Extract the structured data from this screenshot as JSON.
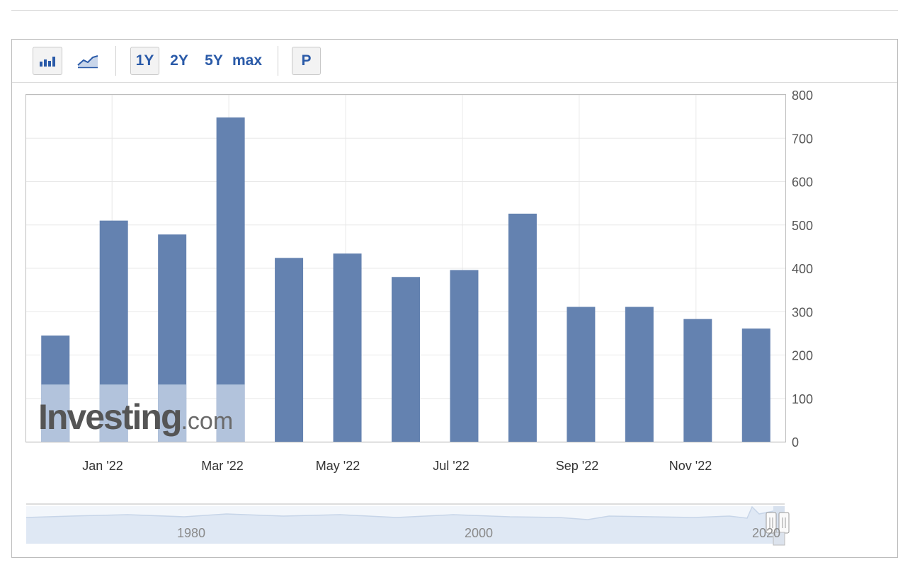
{
  "toolbar": {
    "bar_chart_icon": "bar-chart-icon",
    "line_chart_icon": "line-chart-icon",
    "range_1y": "1Y",
    "range_2y": "2Y",
    "range_5y": "5Y",
    "range_max": "max",
    "p_label": "P"
  },
  "watermark": {
    "brand": "Investing",
    "suffix": ".com"
  },
  "colors": {
    "bar": "#6482b0",
    "bar_light": "#b2c3dc",
    "grid": "#e8e8e8",
    "accent": "#2a5aa8"
  },
  "chart_data": {
    "type": "bar",
    "title": "",
    "xlabel": "",
    "ylabel": "",
    "x_tick_labels": [
      "Jan '22",
      "Mar '22",
      "May '22",
      "Jul '22",
      "Sep '22",
      "Nov '22"
    ],
    "values": [
      245,
      510,
      478,
      748,
      424,
      434,
      380,
      396,
      526,
      311,
      311,
      283,
      261
    ],
    "overlay_values": [
      132,
      132,
      132,
      132
    ],
    "ylim": [
      0,
      800
    ],
    "y_ticks": [
      0,
      100,
      200,
      300,
      400,
      500,
      600,
      700,
      800
    ],
    "y_axis_side": "right",
    "grid": true
  },
  "navigator": {
    "year_labels": [
      "1980",
      "2000",
      "2020"
    ]
  }
}
